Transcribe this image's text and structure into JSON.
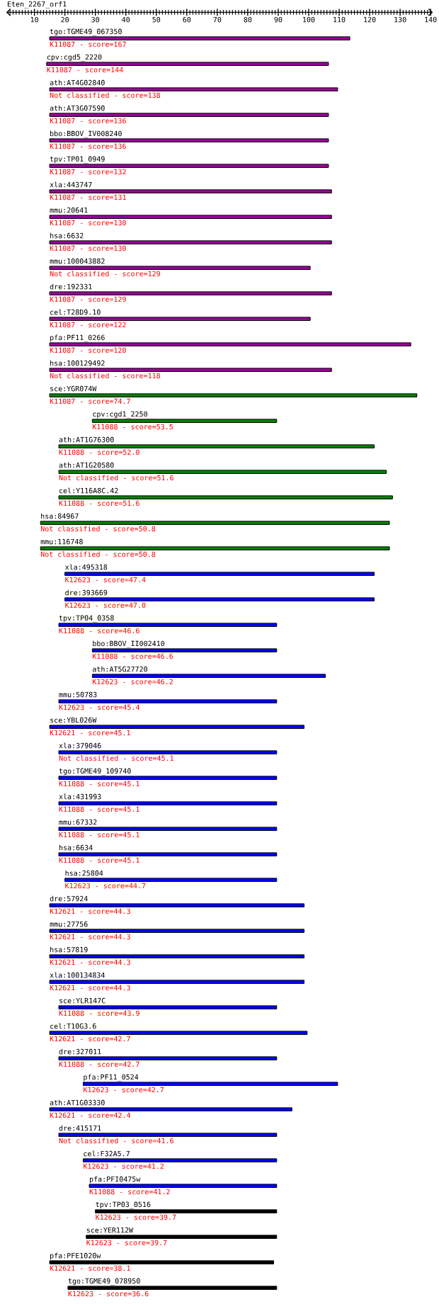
{
  "chart_data": {
    "type": "bar",
    "orientation": "horizontal",
    "title": "Eten_2267_orf1",
    "categories": [
      "tgo:TGME49_067350",
      "cpv:cgd5_2220",
      "ath:AT4G02840",
      "ath:AT3G07590",
      "bbo:BBOV_IV008240",
      "tpv:TP01_0949",
      "xla:443747",
      "mmu:20641",
      "hsa:6632",
      "mmu:100043882",
      "dre:192331",
      "cel:T28D9.10",
      "pfa:PF11_0266",
      "hsa:100129492",
      "sce:YGR074W",
      "cpv:cgd1_2250",
      "ath:AT1G76300",
      "ath:AT1G20580",
      "cel:Y116A8C.42",
      "hsa:84967",
      "mmu:116748",
      "xla:495318",
      "dre:393669",
      "tpv:TP04_0358",
      "bbo:BBOV_II002410",
      "ath:AT5G27720",
      "mmu:50783",
      "sce:YBL026W",
      "xla:379046",
      "tgo:TGME49_109740",
      "xla:431993",
      "mmu:67332",
      "hsa:6634",
      "hsa:25804",
      "dre:57924",
      "mmu:27756",
      "hsa:57819",
      "xla:100134834",
      "sce:YLR147C",
      "cel:T10G3.6",
      "dre:327011",
      "pfa:PF11_0524",
      "ath:AT1G03330",
      "dre:415171",
      "cel:F32A5.7",
      "pfa:PFI0475w",
      "tpv:TP03_0516",
      "sce:YER112W",
      "pfa:PFE1020w",
      "tgo:TGME49_078950"
    ],
    "base": [
      15,
      14,
      15,
      15,
      15,
      15,
      15,
      15,
      15,
      15,
      15,
      15,
      15,
      15,
      15,
      29,
      18,
      18,
      18,
      12,
      12,
      20,
      20,
      18,
      29,
      29,
      18,
      15,
      18,
      18,
      18,
      18,
      18,
      20,
      15,
      15,
      15,
      15,
      18,
      15,
      18,
      26,
      15,
      18,
      26,
      28,
      30,
      27,
      15,
      21
    ],
    "values": [
      98.5,
      92.5,
      94.5,
      91.5,
      91.5,
      91.5,
      92.5,
      92.5,
      92.5,
      85.5,
      92.5,
      85.5,
      118.5,
      92.5,
      120.5,
      60.5,
      103.5,
      107.5,
      109.5,
      114.5,
      114.5,
      101.5,
      101.5,
      71.5,
      60.5,
      76.5,
      71.5,
      83.5,
      71.5,
      71.5,
      71.5,
      71.5,
      71.5,
      69.5,
      83.5,
      83.5,
      83.5,
      83.5,
      71.5,
      84.5,
      71.5,
      83.5,
      79.5,
      71.5,
      63.5,
      61.5,
      59.5,
      62.5,
      73.5,
      68.5
    ],
    "colors": [
      "#990099",
      "#990099",
      "#990099",
      "#990099",
      "#990099",
      "#990099",
      "#990099",
      "#990099",
      "#990099",
      "#990099",
      "#990099",
      "#990099",
      "#990099",
      "#990099",
      "#008000",
      "#008000",
      "#008000",
      "#008000",
      "#008000",
      "#008000",
      "#008000",
      "#0000ff",
      "#0000ff",
      "#0000ff",
      "#0000ff",
      "#0000ff",
      "#0000ff",
      "#0000ff",
      "#0000ff",
      "#0000ff",
      "#0000ff",
      "#0000ff",
      "#0000ff",
      "#0000ff",
      "#0000ff",
      "#0000ff",
      "#0000ff",
      "#0000ff",
      "#0000ff",
      "#0000ff",
      "#0000ff",
      "#0000ff",
      "#0000ff",
      "#0000ff",
      "#0000ff",
      "#0000ff",
      "#000000",
      "#000000",
      "#000000",
      "#000000"
    ],
    "annotations": [
      "K11087 - score=167",
      "K11087 - score=144",
      "Not classified - score=138",
      "K11087 - score=136",
      "K11087 - score=136",
      "K11087 - score=132",
      "K11087 - score=131",
      "K11087 - score=130",
      "K11087 - score=130",
      "Not classified - score=129",
      "K11087 - score=129",
      "K11087 - score=122",
      "K11087 - score=120",
      "Not classified - score=118",
      "K11087 - score=74.7",
      "K11088 - score=53.5",
      "K11088 - score=52.0",
      "Not classified - score=51.6",
      "K11088 - score=51.6",
      "Not classified - score=50.8",
      "Not classified - score=50.8",
      "K12623 - score=47.4",
      "K12623 - score=47.0",
      "K11088 - score=46.6",
      "K11088 - score=46.6",
      "K12623 - score=46.2",
      "K12623 - score=45.4",
      "K12621 - score=45.1",
      "Not classified - score=45.1",
      "K11088 - score=45.1",
      "K11088 - score=45.1",
      "K11088 - score=45.1",
      "K11088 - score=45.1",
      "K12623 - score=44.7",
      "K12621 - score=44.3",
      "K12621 - score=44.3",
      "K12621 - score=44.3",
      "K12621 - score=44.3",
      "K11088 - score=43.9",
      "K12621 - score=42.7",
      "K11088 - score=42.7",
      "K12623 - score=42.7",
      "K12621 - score=42.4",
      "Not classified - score=41.6",
      "K12623 - score=41.2",
      "K11088 - score=41.2",
      "K12623 - score=39.7",
      "K12623 - score=39.7",
      "K12621 - score=38.1",
      "K12623 - score=36.6"
    ],
    "xlim": [
      1,
      140.5
    ],
    "xticks": [
      {
        "value": 2,
        "label": null
      },
      {
        "value": 3,
        "label": null
      },
      {
        "value": 4,
        "label": null
      },
      {
        "value": 5,
        "label": null
      },
      {
        "value": 6,
        "label": null
      },
      {
        "value": 7,
        "label": null
      },
      {
        "value": 8,
        "label": null
      },
      {
        "value": 9,
        "label": null
      },
      10,
      {
        "value": 11,
        "label": null
      },
      {
        "value": 12,
        "label": null
      },
      {
        "value": 13,
        "label": null
      },
      {
        "value": 14,
        "label": null
      },
      {
        "value": 15,
        "label": null
      },
      {
        "value": 16,
        "label": null
      },
      {
        "value": 17,
        "label": null
      },
      {
        "value": 18,
        "label": null
      },
      {
        "value": 19,
        "label": null
      },
      20,
      {
        "value": 21,
        "label": null
      },
      {
        "value": 22,
        "label": null
      },
      {
        "value": 23,
        "label": null
      },
      {
        "value": 24,
        "label": null
      },
      {
        "value": 25,
        "label": null
      },
      {
        "value": 26,
        "label": null
      },
      {
        "value": 27,
        "label": null
      },
      {
        "value": 28,
        "label": null
      },
      {
        "value": 29,
        "label": null
      },
      30,
      {
        "value": 31,
        "label": null
      },
      {
        "value": 32,
        "label": null
      },
      {
        "value": 33,
        "label": null
      },
      {
        "value": 34,
        "label": null
      },
      {
        "value": 35,
        "label": null
      },
      {
        "value": 36,
        "label": null
      },
      {
        "value": 37,
        "label": null
      },
      {
        "value": 38,
        "label": null
      },
      {
        "value": 39,
        "label": null
      },
      40,
      {
        "value": 41,
        "label": null
      },
      {
        "value": 42,
        "label": null
      },
      {
        "value": 43,
        "label": null
      },
      {
        "value": 44,
        "label": null
      },
      {
        "value": 45,
        "label": null
      },
      {
        "value": 46,
        "label": null
      },
      {
        "value": 47,
        "label": null
      },
      {
        "value": 48,
        "label": null
      },
      {
        "value": 49,
        "label": null
      },
      50,
      {
        "value": 51,
        "label": null
      },
      {
        "value": 52,
        "label": null
      },
      {
        "value": 53,
        "label": null
      },
      {
        "value": 54,
        "label": null
      },
      {
        "value": 55,
        "label": null
      },
      {
        "value": 56,
        "label": null
      },
      {
        "value": 57,
        "label": null
      },
      {
        "value": 58,
        "label": null
      },
      {
        "value": 59,
        "label": null
      },
      60,
      {
        "value": 61,
        "label": null
      },
      {
        "value": 62,
        "label": null
      },
      {
        "value": 63,
        "label": null
      },
      {
        "value": 64,
        "label": null
      },
      {
        "value": 65,
        "label": null
      },
      {
        "value": 66,
        "label": null
      },
      {
        "value": 67,
        "label": null
      },
      {
        "value": 68,
        "label": null
      },
      {
        "value": 69,
        "label": null
      },
      70,
      {
        "value": 71,
        "label": null
      },
      {
        "value": 72,
        "label": null
      },
      {
        "value": 73,
        "label": null
      },
      {
        "value": 74,
        "label": null
      },
      {
        "value": 75,
        "label": null
      },
      {
        "value": 76,
        "label": null
      },
      {
        "value": 77,
        "label": null
      },
      {
        "value": 78,
        "label": null
      },
      {
        "value": 79,
        "label": null
      },
      80,
      {
        "value": 81,
        "label": null
      },
      {
        "value": 82,
        "label": null
      },
      {
        "value": 83,
        "label": null
      },
      {
        "value": 84,
        "label": null
      },
      {
        "value": 85,
        "label": null
      },
      {
        "value": 86,
        "label": null
      },
      {
        "value": 87,
        "label": null
      },
      {
        "value": 88,
        "label": null
      },
      {
        "value": 89,
        "label": null
      },
      90,
      {
        "value": 91,
        "label": null
      },
      {
        "value": 92,
        "label": null
      },
      {
        "value": 93,
        "label": null
      },
      {
        "value": 94,
        "label": null
      },
      {
        "value": 95,
        "label": null
      },
      {
        "value": 96,
        "label": null
      },
      {
        "value": 97,
        "label": null
      },
      {
        "value": 98,
        "label": null
      },
      {
        "value": 99,
        "label": null
      },
      100,
      {
        "value": 101,
        "label": null
      },
      {
        "value": 102,
        "label": null
      },
      {
        "value": 103,
        "label": null
      },
      {
        "value": 104,
        "label": null
      },
      {
        "value": 105,
        "label": null
      },
      {
        "value": 106,
        "label": null
      },
      {
        "value": 107,
        "label": null
      },
      {
        "value": 108,
        "label": null
      },
      {
        "value": 109,
        "label": null
      },
      110,
      {
        "value": 111,
        "label": null
      },
      {
        "value": 112,
        "label": null
      },
      {
        "value": 113,
        "label": null
      },
      {
        "value": 114,
        "label": null
      },
      {
        "value": 115,
        "label": null
      },
      {
        "value": 116,
        "label": null
      },
      {
        "value": 117,
        "label": null
      },
      {
        "value": 118,
        "label": null
      },
      {
        "value": 119,
        "label": null
      },
      120,
      {
        "value": 121,
        "label": null
      },
      {
        "value": 122,
        "label": null
      },
      {
        "value": 123,
        "label": null
      },
      {
        "value": 124,
        "label": null
      },
      {
        "value": 125,
        "label": null
      },
      {
        "value": 126,
        "label": null
      },
      {
        "value": 127,
        "label": null
      },
      {
        "value": 128,
        "label": null
      },
      {
        "value": 129,
        "label": null
      },
      130,
      {
        "value": 131,
        "label": null
      },
      {
        "value": 132,
        "label": null
      },
      {
        "value": 133,
        "label": null
      },
      {
        "value": 134,
        "label": null
      },
      {
        "value": 135,
        "label": null
      },
      {
        "value": 136,
        "label": null
      },
      {
        "value": 137,
        "label": null
      },
      {
        "value": 138,
        "label": null
      },
      {
        "value": 139,
        "label": null
      },
      140
    ]
  }
}
